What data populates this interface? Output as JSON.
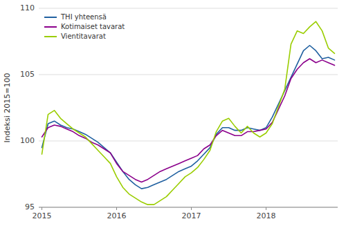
{
  "chart_data": {
    "type": "line",
    "ylabel": "Indeksi 2015=100",
    "categories": [
      "2015",
      null,
      null,
      null,
      null,
      null,
      null,
      null,
      null,
      null,
      null,
      null,
      "2016",
      null,
      null,
      null,
      null,
      null,
      null,
      null,
      null,
      null,
      null,
      null,
      "2017",
      null,
      null,
      null,
      null,
      null,
      null,
      null,
      null,
      null,
      null,
      null,
      "2018",
      null,
      null,
      null,
      null,
      null,
      null,
      null,
      null,
      null,
      null,
      null
    ],
    "series": [
      {
        "name": "THI yhteensä",
        "color": "#2060a0",
        "values": [
          99.5,
          101.3,
          101.5,
          101.2,
          101.0,
          100.9,
          100.7,
          100.5,
          100.2,
          99.9,
          99.5,
          99.1,
          98.4,
          97.7,
          97.1,
          96.7,
          96.4,
          96.5,
          96.7,
          96.9,
          97.1,
          97.4,
          97.7,
          97.9,
          98.1,
          98.5,
          99.0,
          99.5,
          100.5,
          101.0,
          101.0,
          100.8,
          100.8,
          101.0,
          100.9,
          100.8,
          101.0,
          101.8,
          102.8,
          103.8,
          104.8,
          105.8,
          106.8,
          107.2,
          106.8,
          106.2,
          106.3,
          106.1
        ]
      },
      {
        "name": "Kotimaiset tavarat",
        "color": "#8b008b",
        "values": [
          100.3,
          101.0,
          101.2,
          101.1,
          100.9,
          100.7,
          100.4,
          100.2,
          99.9,
          99.7,
          99.4,
          99.1,
          98.3,
          97.7,
          97.4,
          97.1,
          96.9,
          97.1,
          97.4,
          97.7,
          97.9,
          98.1,
          98.3,
          98.5,
          98.7,
          98.9,
          99.4,
          99.7,
          100.4,
          100.8,
          100.6,
          100.4,
          100.4,
          100.7,
          100.7,
          100.8,
          100.9,
          101.4,
          102.4,
          103.4,
          104.7,
          105.4,
          105.9,
          106.2,
          105.9,
          106.1,
          105.9,
          105.7
        ]
      },
      {
        "name": "Vientitavarat",
        "color": "#9acd00",
        "values": [
          99.0,
          102.0,
          102.3,
          101.7,
          101.3,
          100.9,
          100.6,
          100.3,
          99.8,
          99.3,
          98.8,
          98.3,
          97.3,
          96.5,
          96.0,
          95.7,
          95.4,
          95.2,
          95.2,
          95.5,
          95.8,
          96.3,
          96.8,
          97.3,
          97.6,
          98.0,
          98.6,
          99.3,
          100.7,
          101.5,
          101.7,
          101.1,
          100.6,
          101.1,
          100.6,
          100.3,
          100.6,
          101.3,
          102.6,
          103.9,
          107.3,
          108.3,
          108.1,
          108.6,
          109.0,
          108.3,
          107.0,
          106.6
        ]
      }
    ],
    "ylim": [
      95,
      110
    ],
    "yticks": [
      95,
      100,
      105,
      110
    ],
    "grid": "y",
    "legend": "upper left"
  }
}
